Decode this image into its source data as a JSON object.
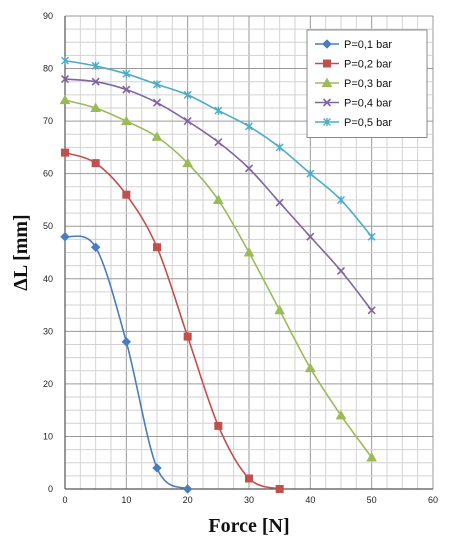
{
  "chart_data": {
    "type": "line",
    "xlabel": "Force [N]",
    "ylabel": "ΔL [mm]",
    "xlim": [
      0,
      60
    ],
    "ylim": [
      0,
      90
    ],
    "x_ticks": [
      0,
      10,
      20,
      30,
      40,
      50,
      60
    ],
    "y_ticks": [
      0,
      10,
      20,
      30,
      40,
      50,
      60,
      70,
      80,
      90
    ],
    "grid": true,
    "legend_position": "top-right",
    "series": [
      {
        "name": "P=0,1 bar",
        "color": "#4a7ebb",
        "marker": "diamond",
        "x": [
          0,
          5,
          10,
          15,
          20
        ],
        "y": [
          48,
          46,
          28,
          4,
          0
        ]
      },
      {
        "name": "P=0,2 bar",
        "color": "#c0504d",
        "marker": "square",
        "x": [
          0,
          5,
          10,
          15,
          20,
          25,
          30,
          35
        ],
        "y": [
          64,
          62,
          56,
          46,
          29,
          12,
          2,
          0
        ]
      },
      {
        "name": "P=0,3 bar",
        "color": "#9bbb59",
        "marker": "triangle",
        "x": [
          0,
          5,
          10,
          15,
          20,
          25,
          30,
          35,
          40,
          45,
          50
        ],
        "y": [
          74,
          72.5,
          70,
          67,
          62,
          55,
          45,
          34,
          23,
          14,
          6
        ]
      },
      {
        "name": "P=0,4 bar",
        "color": "#8064a2",
        "marker": "x",
        "x": [
          0,
          5,
          10,
          15,
          20,
          25,
          30,
          35,
          40,
          45,
          50
        ],
        "y": [
          78,
          77.5,
          76,
          73.5,
          70,
          66,
          61,
          54.5,
          48,
          41.5,
          34
        ]
      },
      {
        "name": "P=0,5 bar",
        "color": "#4bacc6",
        "marker": "star",
        "x": [
          0,
          5,
          10,
          15,
          20,
          25,
          30,
          35,
          40,
          45,
          50
        ],
        "y": [
          81.5,
          80.5,
          79,
          77,
          75,
          72,
          69,
          65,
          60,
          55,
          48
        ]
      }
    ]
  }
}
